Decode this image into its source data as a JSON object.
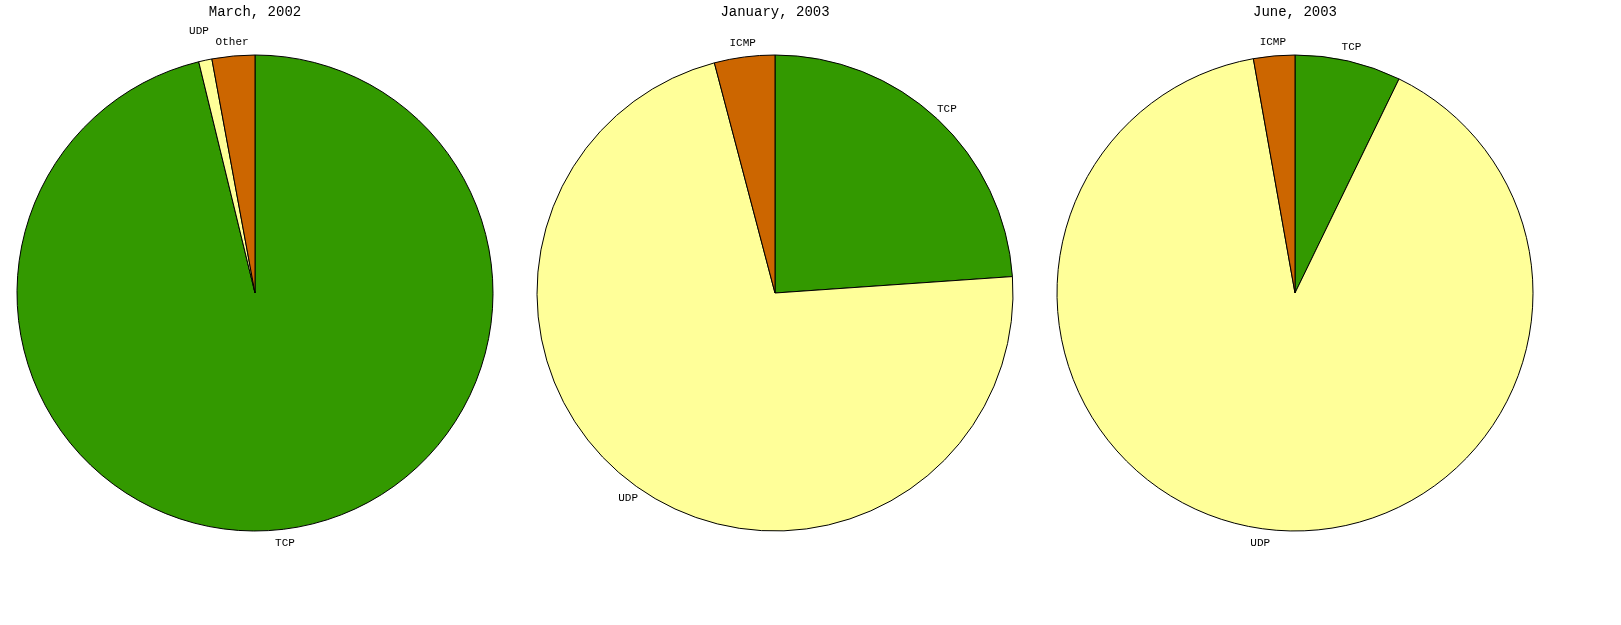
{
  "chart_data": [
    {
      "type": "pie",
      "title": "March, 2002",
      "categories": [
        "TCP",
        "UDP",
        "Other"
      ],
      "values": [
        96.2,
        0.9,
        2.9
      ],
      "colors": [
        "#339900",
        "#ffff99",
        "#cc6600"
      ]
    },
    {
      "type": "pie",
      "title": "January, 2003",
      "categories": [
        "TCP",
        "UDP",
        "ICMP"
      ],
      "values": [
        23.9,
        72.0,
        4.1
      ],
      "colors": [
        "#339900",
        "#ffff99",
        "#cc6600"
      ]
    },
    {
      "type": "pie",
      "title": "June, 2003",
      "categories": [
        "TCP",
        "UDP",
        "ICMP"
      ],
      "values": [
        7.2,
        90.0,
        2.8
      ],
      "colors": [
        "#339900",
        "#ffff99",
        "#cc6600"
      ]
    }
  ]
}
